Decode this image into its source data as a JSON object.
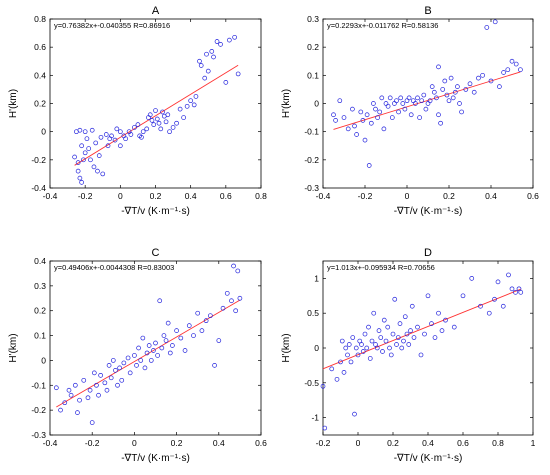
{
  "chart_data": [
    {
      "type": "scatter",
      "title": "A",
      "annotation": "y=0.76382x+-0.040355  R=0.86916",
      "xlabel": "-∇T/v (K·m⁻¹·s)",
      "ylabel": "H'(km)",
      "xlim": [
        -0.4,
        0.8
      ],
      "ylim": [
        -0.4,
        0.8
      ],
      "xticks": [
        -0.4,
        -0.2,
        0,
        0.2,
        0.4,
        0.6,
        0.8
      ],
      "yticks": [
        -0.4,
        -0.2,
        0,
        0.2,
        0.4,
        0.6,
        0.8
      ],
      "tick_labels_x": [
        "-0.4",
        "-0.2",
        "0",
        "0.2",
        "0.4",
        "0.6",
        "0.8"
      ],
      "tick_labels_y": [
        "-0.4",
        "-0.2",
        "0",
        "0.2",
        "0.4",
        "0.6",
        "0.8"
      ],
      "fit": {
        "slope": 0.76382,
        "intercept": -0.040355,
        "x_range": [
          -0.26,
          0.67
        ]
      },
      "colors": {
        "points": "#2222dd",
        "fit": "#ff3333"
      },
      "points": [
        [
          -0.26,
          -0.18
        ],
        [
          -0.25,
          0.0
        ],
        [
          -0.24,
          -0.28
        ],
        [
          -0.24,
          -0.22
        ],
        [
          -0.23,
          -0.33
        ],
        [
          -0.23,
          0.01
        ],
        [
          -0.22,
          -0.1
        ],
        [
          -0.22,
          -0.36
        ],
        [
          -0.21,
          -0.2
        ],
        [
          -0.2,
          -0.15
        ],
        [
          -0.2,
          0.0
        ],
        [
          -0.19,
          -0.05
        ],
        [
          -0.18,
          -0.12
        ],
        [
          -0.17,
          -0.2
        ],
        [
          -0.16,
          0.01
        ],
        [
          -0.15,
          -0.25
        ],
        [
          -0.14,
          -0.08
        ],
        [
          -0.13,
          -0.28
        ],
        [
          -0.12,
          -0.17
        ],
        [
          -0.11,
          -0.04
        ],
        [
          -0.1,
          -0.3
        ],
        [
          -0.08,
          -0.02
        ],
        [
          -0.07,
          -0.1
        ],
        [
          -0.06,
          -0.05
        ],
        [
          -0.05,
          -0.03
        ],
        [
          -0.03,
          -0.06
        ],
        [
          -0.02,
          0.02
        ],
        [
          0.0,
          0.0
        ],
        [
          0.0,
          -0.1
        ],
        [
          0.02,
          -0.03
        ],
        [
          0.03,
          -0.05
        ],
        [
          0.05,
          0.0
        ],
        [
          0.06,
          -0.02
        ],
        [
          0.08,
          0.03
        ],
        [
          0.1,
          0.05
        ],
        [
          0.11,
          -0.03
        ],
        [
          0.12,
          -0.04
        ],
        [
          0.13,
          0.0
        ],
        [
          0.15,
          0.02
        ],
        [
          0.16,
          0.1
        ],
        [
          0.17,
          0.12
        ],
        [
          0.18,
          0.08
        ],
        [
          0.19,
          0.05
        ],
        [
          0.2,
          0.15
        ],
        [
          0.21,
          0.09
        ],
        [
          0.22,
          0.06
        ],
        [
          0.23,
          0.02
        ],
        [
          0.24,
          0.14
        ],
        [
          0.25,
          0.11
        ],
        [
          0.26,
          0.07
        ],
        [
          0.27,
          0.12
        ],
        [
          0.28,
          0.0
        ],
        [
          0.3,
          0.03
        ],
        [
          0.32,
          0.06
        ],
        [
          0.34,
          0.16
        ],
        [
          0.36,
          0.1
        ],
        [
          0.38,
          0.18
        ],
        [
          0.4,
          0.22
        ],
        [
          0.42,
          0.19
        ],
        [
          0.43,
          0.25
        ],
        [
          0.45,
          0.5
        ],
        [
          0.46,
          0.47
        ],
        [
          0.48,
          0.38
        ],
        [
          0.49,
          0.55
        ],
        [
          0.5,
          0.43
        ],
        [
          0.52,
          0.57
        ],
        [
          0.53,
          0.53
        ],
        [
          0.55,
          0.64
        ],
        [
          0.57,
          0.62
        ],
        [
          0.6,
          0.35
        ],
        [
          0.62,
          0.65
        ],
        [
          0.65,
          0.67
        ],
        [
          0.67,
          0.41
        ]
      ]
    },
    {
      "type": "scatter",
      "title": "B",
      "annotation": "y=0.2293x+-0.011762  R=0.58136",
      "xlabel": "-∇T/v (K·m⁻¹·s)",
      "ylabel": "H'(km)",
      "xlim": [
        -0.4,
        0.6
      ],
      "ylim": [
        -0.3,
        0.3
      ],
      "xticks": [
        -0.4,
        -0.2,
        0,
        0.2,
        0.4,
        0.6
      ],
      "yticks": [
        -0.3,
        -0.2,
        -0.1,
        0,
        0.1,
        0.2,
        0.3
      ],
      "tick_labels_x": [
        "-0.4",
        "-0.2",
        "0",
        "0.2",
        "0.4",
        "0.6"
      ],
      "tick_labels_y": [
        "-0.3",
        "-0.2",
        "-0.1",
        "0",
        "0.1",
        "0.2",
        "0.3"
      ],
      "fit": {
        "slope": 0.2293,
        "intercept": -0.011762,
        "x_range": [
          -0.35,
          0.54
        ]
      },
      "colors": {
        "points": "#2222dd",
        "fit": "#ff3333"
      },
      "points": [
        [
          -0.35,
          -0.04
        ],
        [
          -0.34,
          -0.06
        ],
        [
          -0.32,
          0.01
        ],
        [
          -0.3,
          -0.05
        ],
        [
          -0.28,
          -0.09
        ],
        [
          -0.26,
          -0.02
        ],
        [
          -0.25,
          -0.08
        ],
        [
          -0.24,
          -0.11
        ],
        [
          -0.22,
          -0.03
        ],
        [
          -0.21,
          -0.06
        ],
        [
          -0.2,
          -0.13
        ],
        [
          -0.19,
          -0.04
        ],
        [
          -0.18,
          -0.22
        ],
        [
          -0.17,
          -0.07
        ],
        [
          -0.16,
          0.0
        ],
        [
          -0.15,
          -0.02
        ],
        [
          -0.14,
          -0.05
        ],
        [
          -0.13,
          -0.03
        ],
        [
          -0.12,
          0.02
        ],
        [
          -0.11,
          -0.09
        ],
        [
          -0.1,
          0.0
        ],
        [
          -0.09,
          -0.01
        ],
        [
          -0.08,
          0.02
        ],
        [
          -0.07,
          -0.05
        ],
        [
          -0.06,
          0.0
        ],
        [
          -0.05,
          0.01
        ],
        [
          -0.04,
          -0.03
        ],
        [
          -0.03,
          0.02
        ],
        [
          -0.02,
          0.0
        ],
        [
          -0.01,
          -0.02
        ],
        [
          0.0,
          0.01
        ],
        [
          0.01,
          0.02
        ],
        [
          0.02,
          -0.04
        ],
        [
          0.03,
          0.01
        ],
        [
          0.04,
          0.0
        ],
        [
          0.05,
          0.02
        ],
        [
          0.06,
          -0.05
        ],
        [
          0.07,
          0.01
        ],
        [
          0.08,
          0.03
        ],
        [
          0.09,
          -0.02
        ],
        [
          0.1,
          0.0
        ],
        [
          0.11,
          0.01
        ],
        [
          0.12,
          0.06
        ],
        [
          0.13,
          0.04
        ],
        [
          0.14,
          0.02
        ],
        [
          0.15,
          -0.04
        ],
        [
          0.15,
          0.13
        ],
        [
          0.16,
          -0.07
        ],
        [
          0.17,
          0.05
        ],
        [
          0.18,
          0.08
        ],
        [
          0.19,
          0.03
        ],
        [
          0.2,
          0.01
        ],
        [
          0.21,
          0.09
        ],
        [
          0.22,
          0.02
        ],
        [
          0.23,
          0.04
        ],
        [
          0.24,
          0.06
        ],
        [
          0.25,
          0.0
        ],
        [
          0.26,
          -0.03
        ],
        [
          0.28,
          0.05
        ],
        [
          0.3,
          0.07
        ],
        [
          0.32,
          0.04
        ],
        [
          0.34,
          0.09
        ],
        [
          0.36,
          0.1
        ],
        [
          0.38,
          0.27
        ],
        [
          0.4,
          0.08
        ],
        [
          0.42,
          0.29
        ],
        [
          0.44,
          0.06
        ],
        [
          0.46,
          0.11
        ],
        [
          0.48,
          0.12
        ],
        [
          0.5,
          0.15
        ],
        [
          0.52,
          0.14
        ],
        [
          0.54,
          0.12
        ]
      ]
    },
    {
      "type": "scatter",
      "title": "C",
      "annotation": "y=0.49406x+-0.0044308  R=0.83003",
      "xlabel": "-∇T/v (K·m⁻¹·s)",
      "ylabel": "H'(km)",
      "xlim": [
        -0.4,
        0.6
      ],
      "ylim": [
        -0.3,
        0.4
      ],
      "xticks": [
        -0.4,
        -0.2,
        0,
        0.2,
        0.4,
        0.6
      ],
      "yticks": [
        -0.3,
        -0.2,
        -0.1,
        0,
        0.1,
        0.2,
        0.3,
        0.4
      ],
      "tick_labels_x": [
        "-0.4",
        "-0.2",
        "0",
        "0.2",
        "0.4",
        "0.6"
      ],
      "tick_labels_y": [
        "-0.3",
        "-0.2",
        "-0.1",
        "0",
        "0.1",
        "0.2",
        "0.3",
        "0.4"
      ],
      "fit": {
        "slope": 0.49406,
        "intercept": -0.0044308,
        "x_range": [
          -0.37,
          0.5
        ]
      },
      "colors": {
        "points": "#2222dd",
        "fit": "#ff3333"
      },
      "points": [
        [
          -0.37,
          -0.11
        ],
        [
          -0.35,
          -0.2
        ],
        [
          -0.33,
          -0.17
        ],
        [
          -0.31,
          -0.12
        ],
        [
          -0.3,
          -0.14
        ],
        [
          -0.28,
          -0.1
        ],
        [
          -0.27,
          -0.21
        ],
        [
          -0.26,
          -0.16
        ],
        [
          -0.24,
          -0.08
        ],
        [
          -0.22,
          -0.15
        ],
        [
          -0.21,
          -0.12
        ],
        [
          -0.2,
          -0.25
        ],
        [
          -0.19,
          -0.05
        ],
        [
          -0.18,
          -0.1
        ],
        [
          -0.17,
          -0.14
        ],
        [
          -0.16,
          -0.06
        ],
        [
          -0.14,
          -0.09
        ],
        [
          -0.13,
          -0.12
        ],
        [
          -0.12,
          -0.02
        ],
        [
          -0.11,
          -0.07
        ],
        [
          -0.1,
          0.0
        ],
        [
          -0.09,
          -0.04
        ],
        [
          -0.08,
          -0.1
        ],
        [
          -0.07,
          -0.03
        ],
        [
          -0.06,
          -0.08
        ],
        [
          -0.05,
          -0.01
        ],
        [
          -0.03,
          0.01
        ],
        [
          -0.02,
          -0.05
        ],
        [
          0.0,
          0.02
        ],
        [
          0.01,
          -0.02
        ],
        [
          0.02,
          0.05
        ],
        [
          0.03,
          0.0
        ],
        [
          0.04,
          0.09
        ],
        [
          0.05,
          -0.03
        ],
        [
          0.06,
          0.03
        ],
        [
          0.07,
          0.06
        ],
        [
          0.08,
          0.0
        ],
        [
          0.09,
          0.04
        ],
        [
          0.1,
          0.07
        ],
        [
          0.11,
          0.02
        ],
        [
          0.12,
          0.24
        ],
        [
          0.13,
          0.05
        ],
        [
          0.14,
          0.1
        ],
        [
          0.15,
          0.08
        ],
        [
          0.16,
          0.15
        ],
        [
          0.17,
          0.03
        ],
        [
          0.18,
          0.06
        ],
        [
          0.2,
          0.12
        ],
        [
          0.22,
          0.09
        ],
        [
          0.24,
          0.04
        ],
        [
          0.26,
          0.14
        ],
        [
          0.28,
          0.1
        ],
        [
          0.3,
          0.19
        ],
        [
          0.32,
          0.12
        ],
        [
          0.34,
          0.16
        ],
        [
          0.36,
          0.18
        ],
        [
          0.38,
          -0.02
        ],
        [
          0.4,
          0.08
        ],
        [
          0.42,
          0.21
        ],
        [
          0.44,
          0.27
        ],
        [
          0.46,
          0.24
        ],
        [
          0.47,
          0.38
        ],
        [
          0.48,
          0.2
        ],
        [
          0.49,
          0.36
        ],
        [
          0.5,
          0.25
        ]
      ]
    },
    {
      "type": "scatter",
      "title": "D",
      "annotation": "y=1.013x+-0.095934  R=0.70656",
      "xlabel": "-∇T/v (K·m⁻¹·s)",
      "ylabel": "H'(km)",
      "xlim": [
        -0.2,
        1.0
      ],
      "ylim": [
        -1.25,
        1.25
      ],
      "xticks": [
        -0.2,
        0,
        0.2,
        0.4,
        0.6,
        0.8,
        1
      ],
      "yticks": [
        -1,
        -0.5,
        0,
        0.5,
        1
      ],
      "tick_labels_x": [
        "-0.2",
        "0",
        "0.2",
        "0.4",
        "0.6",
        "0.8",
        "1"
      ],
      "tick_labels_y": [
        "-1",
        "-0.5",
        "0",
        "0.5",
        "1"
      ],
      "fit": {
        "slope": 1.013,
        "intercept": -0.095934,
        "x_range": [
          -0.2,
          0.93
        ]
      },
      "colors": {
        "points": "#2222dd",
        "fit": "#ff3333"
      },
      "points": [
        [
          -0.2,
          -0.55
        ],
        [
          -0.19,
          -1.15
        ],
        [
          -0.15,
          -0.3
        ],
        [
          -0.12,
          -0.45
        ],
        [
          -0.1,
          -0.2
        ],
        [
          -0.09,
          0.1
        ],
        [
          -0.08,
          -0.35
        ],
        [
          -0.07,
          0.0
        ],
        [
          -0.06,
          -0.1
        ],
        [
          -0.05,
          0.05
        ],
        [
          -0.04,
          -0.2
        ],
        [
          -0.03,
          0.15
        ],
        [
          -0.02,
          -0.95
        ],
        [
          -0.01,
          0.0
        ],
        [
          0.0,
          -0.1
        ],
        [
          0.01,
          0.1
        ],
        [
          0.02,
          0.05
        ],
        [
          0.03,
          -0.05
        ],
        [
          0.04,
          0.2
        ],
        [
          0.05,
          0.0
        ],
        [
          0.06,
          0.3
        ],
        [
          0.07,
          -0.15
        ],
        [
          0.08,
          0.1
        ],
        [
          0.09,
          0.5
        ],
        [
          0.1,
          0.05
        ],
        [
          0.11,
          0.0
        ],
        [
          0.12,
          0.25
        ],
        [
          0.13,
          0.15
        ],
        [
          0.14,
          -0.05
        ],
        [
          0.15,
          0.4
        ],
        [
          0.16,
          0.1
        ],
        [
          0.17,
          0.3
        ],
        [
          0.18,
          0.0
        ],
        [
          0.19,
          -0.1
        ],
        [
          0.2,
          0.2
        ],
        [
          0.21,
          0.7
        ],
        [
          0.22,
          0.05
        ],
        [
          0.23,
          0.15
        ],
        [
          0.24,
          0.35
        ],
        [
          0.25,
          0.0
        ],
        [
          0.26,
          0.1
        ],
        [
          0.27,
          0.45
        ],
        [
          0.28,
          0.2
        ],
        [
          0.29,
          0.05
        ],
        [
          0.3,
          0.25
        ],
        [
          0.31,
          0.6
        ],
        [
          0.32,
          0.15
        ],
        [
          0.34,
          0.3
        ],
        [
          0.36,
          -0.1
        ],
        [
          0.38,
          0.2
        ],
        [
          0.4,
          0.75
        ],
        [
          0.42,
          0.35
        ],
        [
          0.44,
          0.15
        ],
        [
          0.46,
          0.5
        ],
        [
          0.48,
          0.25
        ],
        [
          0.5,
          0.4
        ],
        [
          0.55,
          0.3
        ],
        [
          0.6,
          0.75
        ],
        [
          0.65,
          1.0
        ],
        [
          0.7,
          0.6
        ],
        [
          0.75,
          0.5
        ],
        [
          0.78,
          0.7
        ],
        [
          0.8,
          0.95
        ],
        [
          0.83,
          0.6
        ],
        [
          0.86,
          1.05
        ],
        [
          0.88,
          0.85
        ],
        [
          0.9,
          0.8
        ],
        [
          0.92,
          0.85
        ],
        [
          0.93,
          0.8
        ]
      ]
    }
  ]
}
